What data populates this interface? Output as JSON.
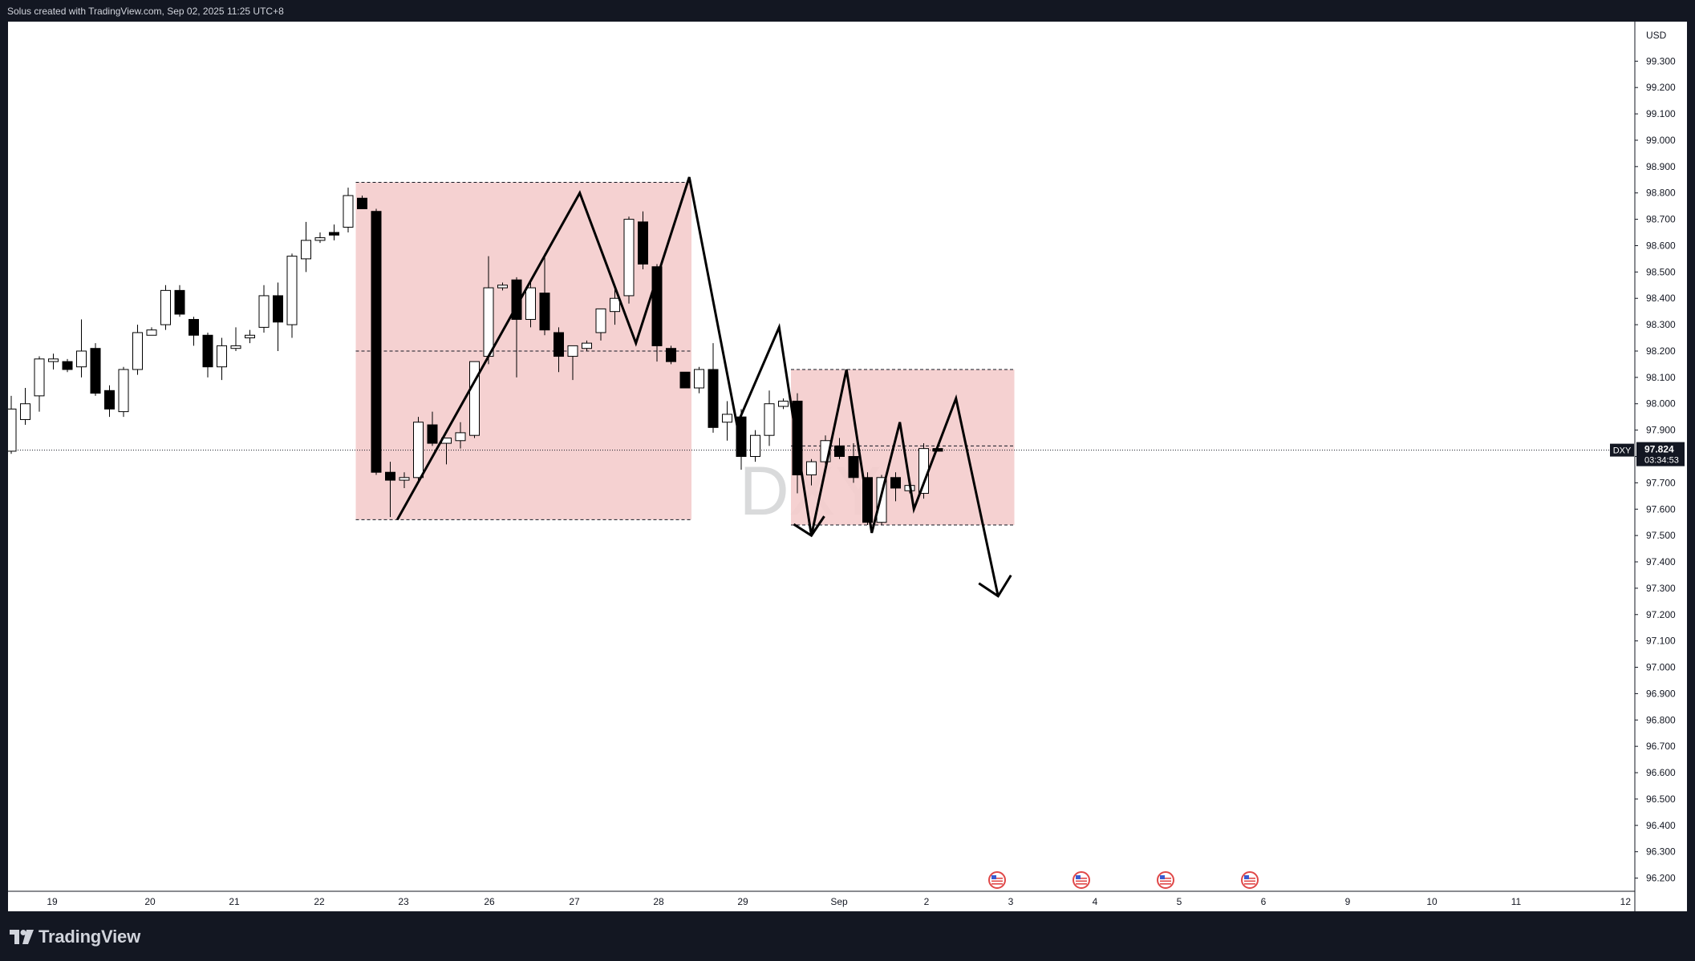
{
  "header": {
    "caption": "Solus created with TradingView.com, Sep 02, 2025 11:25 UTC+8"
  },
  "footer": {
    "brand": "TradingView"
  },
  "chart_data": {
    "type": "candlestick",
    "symbol": "DXY",
    "currency": "USD",
    "last_price": "97.824",
    "countdown": "03:34:53",
    "colors": {
      "up_body": "#ffffff",
      "down_body": "#000000",
      "wick": "#000000",
      "zone_fill": "#f4cccc",
      "price_line": "#131722"
    },
    "ylim": [
      96.15,
      99.45
    ],
    "y_ticks": [
      "99.300",
      "99.200",
      "99.100",
      "99.000",
      "98.900",
      "98.800",
      "98.700",
      "98.600",
      "98.500",
      "98.400",
      "98.300",
      "98.200",
      "98.100",
      "98.000",
      "97.900",
      "97.800",
      "97.700",
      "97.600",
      "97.500",
      "97.400",
      "97.300",
      "97.200",
      "97.100",
      "97.000",
      "96.900",
      "96.800",
      "96.700",
      "96.600",
      "96.500",
      "96.400",
      "96.300",
      "96.200"
    ],
    "x_labels": [
      "19",
      "20",
      "21",
      "22",
      "23",
      "26",
      "27",
      "28",
      "29",
      "Sep",
      "2",
      "3",
      "4",
      "5",
      "6",
      "9",
      "10",
      "11",
      "12"
    ],
    "candles": [
      {
        "o": 97.82,
        "h": 98.03,
        "l": 97.81,
        "c": 97.98
      },
      {
        "o": 97.94,
        "h": 98.06,
        "l": 97.92,
        "c": 98.0
      },
      {
        "o": 98.03,
        "h": 98.18,
        "l": 97.97,
        "c": 98.17
      },
      {
        "o": 98.16,
        "h": 98.19,
        "l": 98.13,
        "c": 98.17
      },
      {
        "o": 98.16,
        "h": 98.17,
        "l": 98.12,
        "c": 98.13
      },
      {
        "o": 98.14,
        "h": 98.32,
        "l": 98.1,
        "c": 98.2
      },
      {
        "o": 98.21,
        "h": 98.23,
        "l": 98.03,
        "c": 98.04
      },
      {
        "o": 98.05,
        "h": 98.07,
        "l": 97.95,
        "c": 97.98
      },
      {
        "o": 97.97,
        "h": 98.14,
        "l": 97.95,
        "c": 98.13
      },
      {
        "o": 98.13,
        "h": 98.3,
        "l": 98.11,
        "c": 98.27
      },
      {
        "o": 98.26,
        "h": 98.29,
        "l": 98.26,
        "c": 98.28
      },
      {
        "o": 98.3,
        "h": 98.45,
        "l": 98.28,
        "c": 98.43
      },
      {
        "o": 98.43,
        "h": 98.45,
        "l": 98.33,
        "c": 98.34
      },
      {
        "o": 98.32,
        "h": 98.33,
        "l": 98.22,
        "c": 98.26
      },
      {
        "o": 98.26,
        "h": 98.27,
        "l": 98.1,
        "c": 98.14
      },
      {
        "o": 98.14,
        "h": 98.25,
        "l": 98.09,
        "c": 98.22
      },
      {
        "o": 98.21,
        "h": 98.29,
        "l": 98.2,
        "c": 98.22
      },
      {
        "o": 98.25,
        "h": 98.28,
        "l": 98.23,
        "c": 98.26
      },
      {
        "o": 98.29,
        "h": 98.45,
        "l": 98.27,
        "c": 98.41
      },
      {
        "o": 98.41,
        "h": 98.46,
        "l": 98.2,
        "c": 98.31
      },
      {
        "o": 98.3,
        "h": 98.57,
        "l": 98.25,
        "c": 98.56
      },
      {
        "o": 98.55,
        "h": 98.69,
        "l": 98.5,
        "c": 98.62
      },
      {
        "o": 98.62,
        "h": 98.65,
        "l": 98.61,
        "c": 98.63
      },
      {
        "o": 98.65,
        "h": 98.68,
        "l": 98.62,
        "c": 98.64
      },
      {
        "o": 98.67,
        "h": 98.82,
        "l": 98.65,
        "c": 98.79
      },
      {
        "o": 98.78,
        "h": 98.79,
        "l": 98.74,
        "c": 98.74
      },
      {
        "o": 98.73,
        "h": 98.74,
        "l": 97.73,
        "c": 97.74
      },
      {
        "o": 97.74,
        "h": 97.78,
        "l": 97.57,
        "c": 97.71
      },
      {
        "o": 97.71,
        "h": 97.74,
        "l": 97.68,
        "c": 97.72
      },
      {
        "o": 97.72,
        "h": 97.95,
        "l": 97.7,
        "c": 97.93
      },
      {
        "o": 97.92,
        "h": 97.97,
        "l": 97.84,
        "c": 97.85
      },
      {
        "o": 97.85,
        "h": 97.87,
        "l": 97.77,
        "c": 97.87
      },
      {
        "o": 97.86,
        "h": 97.93,
        "l": 97.83,
        "c": 97.89
      },
      {
        "o": 97.88,
        "h": 98.15,
        "l": 97.87,
        "c": 98.16
      },
      {
        "o": 98.18,
        "h": 98.56,
        "l": 98.15,
        "c": 98.44
      },
      {
        "o": 98.44,
        "h": 98.46,
        "l": 98.43,
        "c": 98.45
      },
      {
        "o": 98.47,
        "h": 98.48,
        "l": 98.1,
        "c": 98.32
      },
      {
        "o": 98.32,
        "h": 98.46,
        "l": 98.29,
        "c": 98.44
      },
      {
        "o": 98.42,
        "h": 98.57,
        "l": 98.26,
        "c": 98.28
      },
      {
        "o": 98.27,
        "h": 98.29,
        "l": 98.12,
        "c": 98.18
      },
      {
        "o": 98.18,
        "h": 98.22,
        "l": 98.09,
        "c": 98.22
      },
      {
        "o": 98.21,
        "h": 98.24,
        "l": 98.2,
        "c": 98.23
      },
      {
        "o": 98.27,
        "h": 98.36,
        "l": 98.24,
        "c": 98.36
      },
      {
        "o": 98.35,
        "h": 98.44,
        "l": 98.3,
        "c": 98.4
      },
      {
        "o": 98.41,
        "h": 98.71,
        "l": 98.38,
        "c": 98.7
      },
      {
        "o": 98.69,
        "h": 98.73,
        "l": 98.51,
        "c": 98.53
      },
      {
        "o": 98.52,
        "h": 98.53,
        "l": 98.16,
        "c": 98.22
      },
      {
        "o": 98.21,
        "h": 98.22,
        "l": 98.15,
        "c": 98.16
      },
      {
        "o": 98.12,
        "h": 98.12,
        "l": 98.06,
        "c": 98.06
      },
      {
        "o": 98.06,
        "h": 98.14,
        "l": 98.04,
        "c": 98.13
      },
      {
        "o": 98.13,
        "h": 98.23,
        "l": 97.89,
        "c": 97.91
      },
      {
        "o": 97.93,
        "h": 98.01,
        "l": 97.86,
        "c": 97.96
      },
      {
        "o": 97.95,
        "h": 97.98,
        "l": 97.75,
        "c": 97.8
      },
      {
        "o": 97.8,
        "h": 97.9,
        "l": 97.78,
        "c": 97.88
      },
      {
        "o": 97.88,
        "h": 98.05,
        "l": 97.84,
        "c": 98.0
      },
      {
        "o": 97.99,
        "h": 98.02,
        "l": 97.98,
        "c": 98.01
      },
      {
        "o": 98.01,
        "h": 98.04,
        "l": 97.66,
        "c": 97.73
      },
      {
        "o": 97.73,
        "h": 97.79,
        "l": 97.69,
        "c": 97.78
      },
      {
        "o": 97.78,
        "h": 97.88,
        "l": 97.77,
        "c": 97.86
      },
      {
        "o": 97.84,
        "h": 97.87,
        "l": 97.79,
        "c": 97.8
      },
      {
        "o": 97.8,
        "h": 97.85,
        "l": 97.7,
        "c": 97.72
      },
      {
        "o": 97.72,
        "h": 97.74,
        "l": 97.54,
        "c": 97.55
      },
      {
        "o": 97.55,
        "h": 97.73,
        "l": 97.54,
        "c": 97.72
      },
      {
        "o": 97.72,
        "h": 97.74,
        "l": 97.63,
        "c": 97.68
      },
      {
        "o": 97.67,
        "h": 97.7,
        "l": 97.66,
        "c": 97.69
      },
      {
        "o": 97.66,
        "h": 97.85,
        "l": 97.64,
        "c": 97.83
      },
      {
        "o": 97.83,
        "h": 97.84,
        "l": 97.82,
        "c": 97.82
      }
    ],
    "zones": [
      {
        "from_index": 25,
        "to_index": 48,
        "top": 98.84,
        "bottom": 97.56,
        "mid": 98.2
      },
      {
        "from_index": 56,
        "to_index": 71,
        "top": 98.13,
        "bottom": 97.54,
        "mid": 97.84
      }
    ],
    "projection_path": [
      {
        "i": 27.5,
        "y": 97.56
      },
      {
        "i": 40.5,
        "y": 98.8
      },
      {
        "i": 44.5,
        "y": 98.23
      },
      {
        "i": 48.3,
        "y": 98.86
      },
      {
        "i": 51.7,
        "y": 97.92
      },
      {
        "i": 54.7,
        "y": 98.29
      },
      {
        "i": 57.0,
        "y": 97.5
      },
      {
        "i": 59.5,
        "y": 98.13
      },
      {
        "i": 61.3,
        "y": 97.51
      },
      {
        "i": 63.3,
        "y": 97.93
      },
      {
        "i": 64.3,
        "y": 97.6
      },
      {
        "i": 67.3,
        "y": 98.02
      },
      {
        "i": 70.3,
        "y": 97.27
      }
    ],
    "event_markers": [
      "us-flag-icon",
      "us-flag-icon",
      "us-flag-icon",
      "us-flag-icon"
    ]
  }
}
